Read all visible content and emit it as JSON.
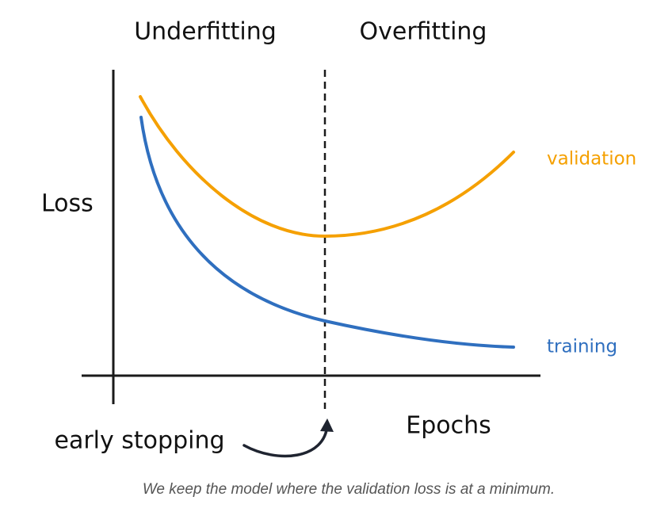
{
  "labels": {
    "underfitting": "Underfitting",
    "overfitting": "Overfitting",
    "y_axis": "Loss",
    "x_axis": "Epochs",
    "validation": "validation",
    "training": "training",
    "early_stopping": "early stopping"
  },
  "caption": "We keep the model where the validation loss is at a minimum."
}
